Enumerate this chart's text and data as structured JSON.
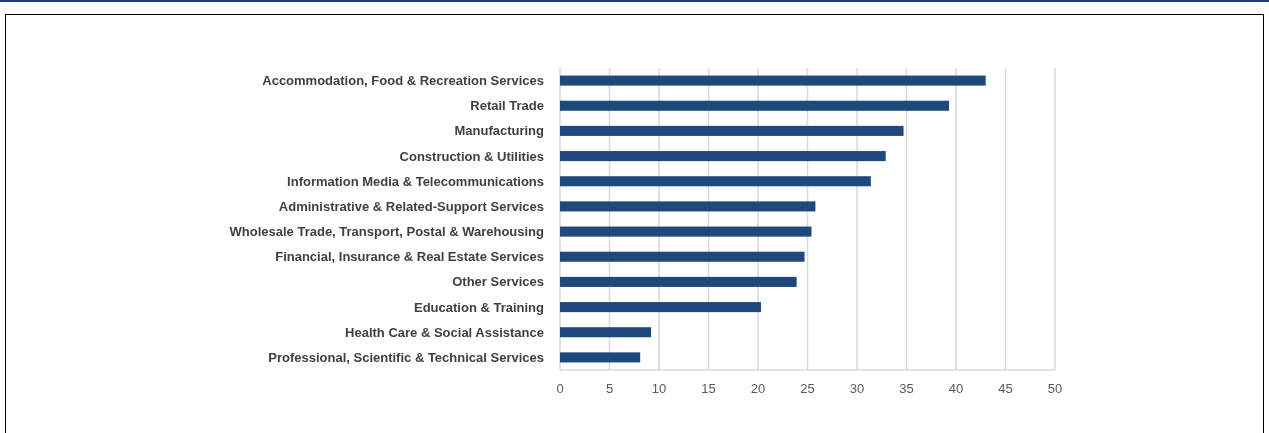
{
  "chart_data": {
    "type": "bar",
    "orientation": "horizontal",
    "categories": [
      "Accommodation, Food & Recreation Services",
      "Retail Trade",
      "Manufacturing",
      "Construction & Utilities",
      "Information Media & Telecommunications",
      "Administrative & Related-Support Services",
      "Wholesale Trade, Transport, Postal & Warehousing",
      "Financial, Insurance & Real Estate Services",
      "Other Services",
      "Education & Training",
      "Health Care & Social Assistance",
      "Professional, Scientific & Technical Services"
    ],
    "values": [
      43.0,
      39.3,
      34.7,
      32.9,
      31.4,
      25.8,
      25.4,
      24.7,
      23.9,
      20.3,
      9.2,
      8.1
    ],
    "color": "#1f497d",
    "xlim": [
      0,
      50
    ],
    "xticks": [
      0,
      5,
      10,
      15,
      20,
      25,
      30,
      35,
      40,
      45,
      50
    ],
    "grid": "x"
  }
}
